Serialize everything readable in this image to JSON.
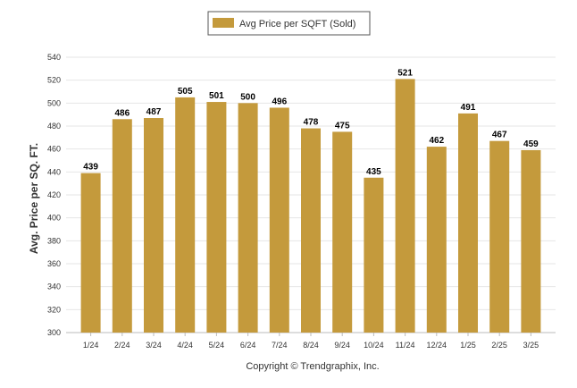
{
  "chart_data": {
    "type": "bar",
    "categories": [
      "1/24",
      "2/24",
      "3/24",
      "4/24",
      "5/24",
      "6/24",
      "7/24",
      "8/24",
      "9/24",
      "10/24",
      "11/24",
      "12/24",
      "1/25",
      "2/25",
      "3/25"
    ],
    "series": [
      {
        "name": "Avg Price per SQFT (Sold)",
        "values": [
          439,
          486,
          487,
          505,
          501,
          500,
          496,
          478,
          475,
          435,
          521,
          462,
          491,
          467,
          459
        ],
        "color": "#c49a3c"
      }
    ],
    "ylabel": "Avg. Price per SQ. FT.",
    "xlabel": "",
    "ylim": [
      300,
      540
    ],
    "yticks": [
      300,
      320,
      340,
      360,
      380,
      400,
      420,
      440,
      460,
      480,
      500,
      520,
      540
    ],
    "grid": true,
    "legend_position": "top-center"
  },
  "footer": {
    "copyright": "Copyright © Trendgraphix, Inc."
  }
}
